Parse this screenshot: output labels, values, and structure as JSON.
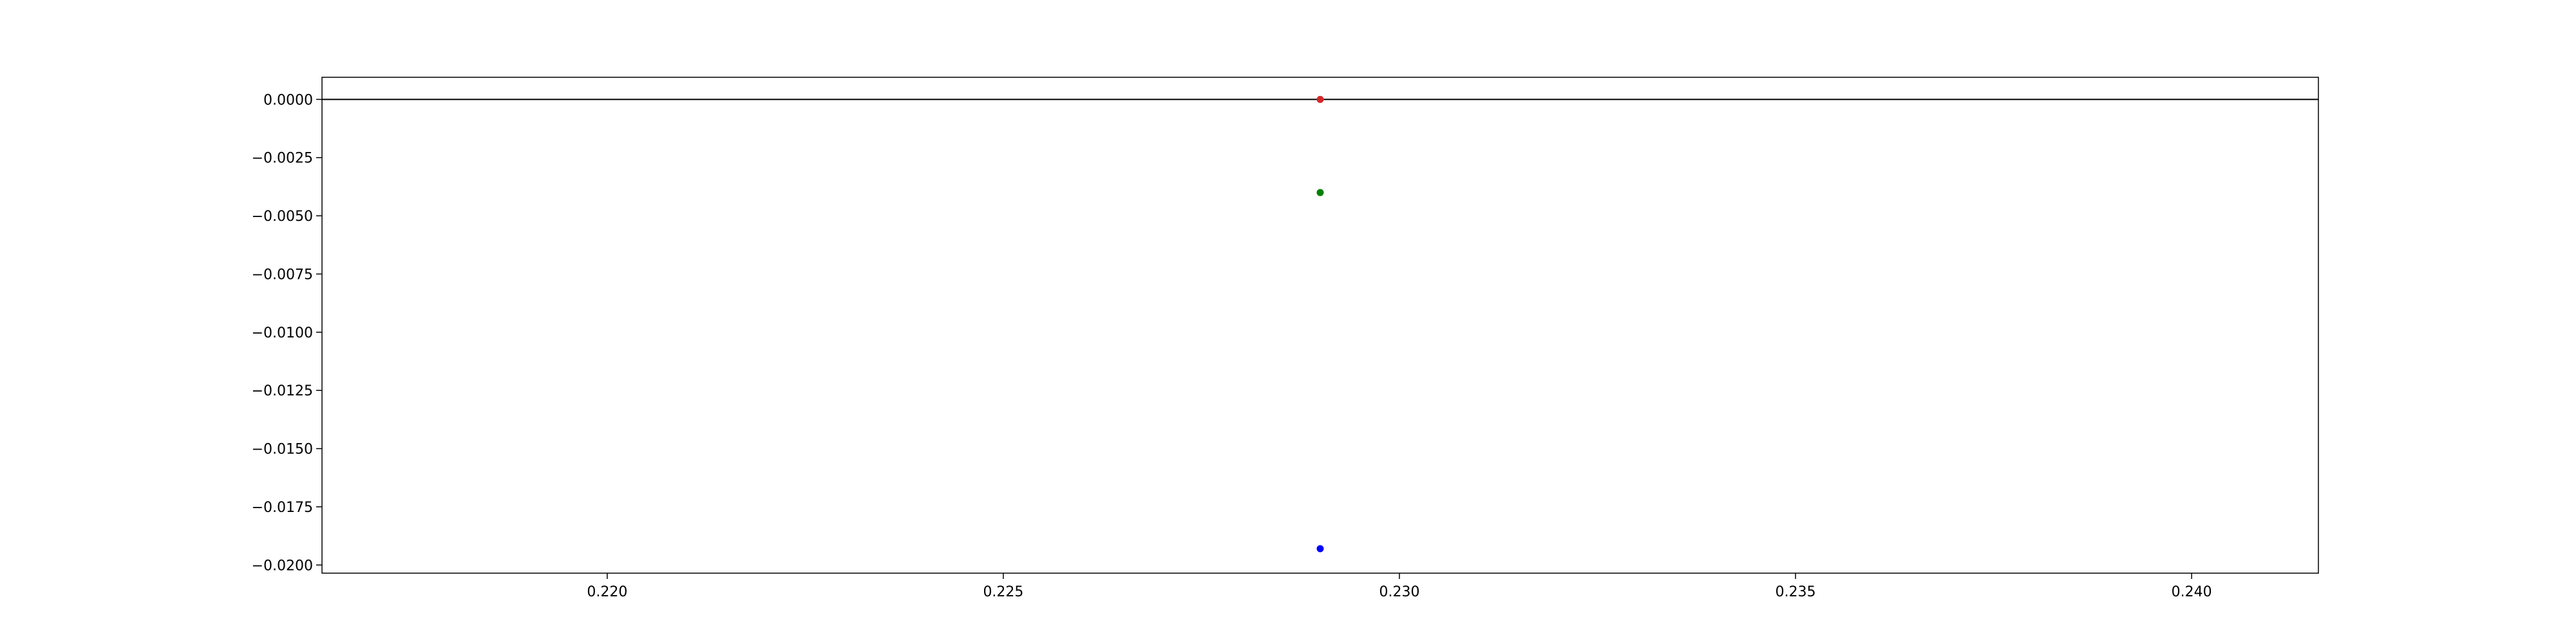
{
  "chart_data": {
    "type": "scatter",
    "title": "",
    "xlabel": "",
    "ylabel": "",
    "xlim": [
      0.2164,
      0.2416
    ],
    "ylim": [
      -0.02035,
      0.00095
    ],
    "xticks": [
      0.22,
      0.225,
      0.23,
      0.235,
      0.24
    ],
    "xtick_labels": [
      "0.220",
      "0.225",
      "0.230",
      "0.235",
      "0.240"
    ],
    "yticks": [
      0.0,
      -0.0025,
      -0.005,
      -0.0075,
      -0.01,
      -0.0125,
      -0.015,
      -0.0175,
      -0.02
    ],
    "ytick_labels": [
      "0.0000",
      "−0.0025",
      "−0.0050",
      "−0.0075",
      "−0.0100",
      "−0.0125",
      "−0.0150",
      "−0.0175",
      "−0.0200"
    ],
    "hlines": [
      {
        "y": 0.0,
        "color": "#000000"
      }
    ],
    "points": [
      {
        "x": 0.229,
        "y": 0.0,
        "color": "#d62728"
      },
      {
        "x": 0.229,
        "y": -0.004,
        "color": "#008000"
      },
      {
        "x": 0.229,
        "y": -0.0193,
        "color": "#0000ff"
      }
    ],
    "grid": false,
    "legend": null
  }
}
